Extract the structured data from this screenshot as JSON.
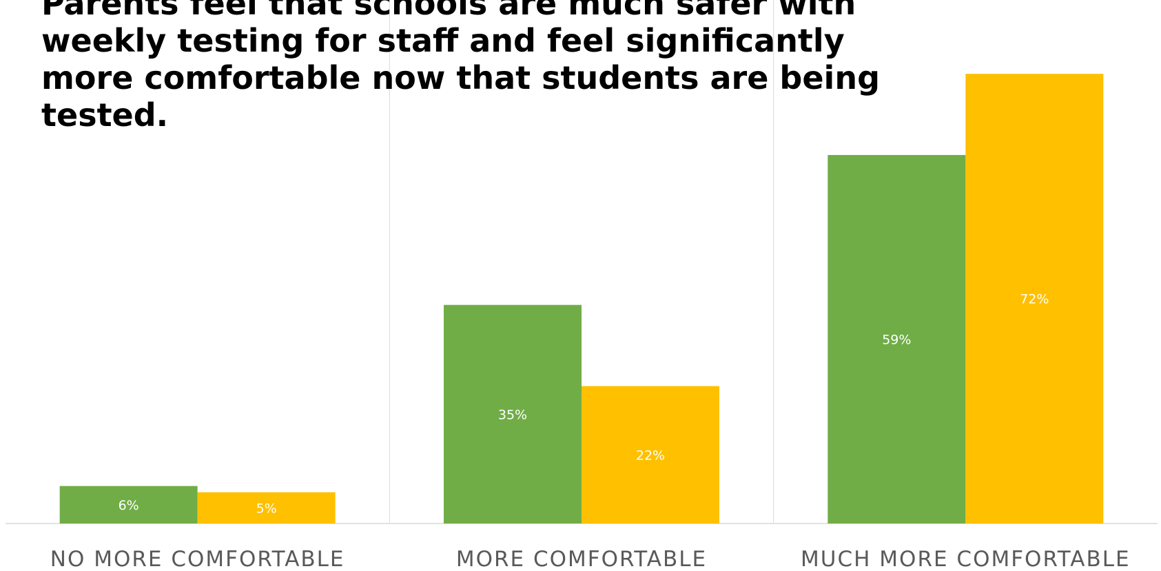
{
  "chart_data": {
    "type": "bar",
    "title": "Parents feel that schools are much safer with weekly testing for staff and feel significantly more comfortable now that students are being tested.",
    "categories": [
      "NO MORE COMFORTABLE",
      "MORE COMFORTABLE",
      "MUCH MORE COMFORTABLE"
    ],
    "series": [
      {
        "values": [
          6,
          35,
          59
        ],
        "labels": [
          "6%",
          "35%",
          "59%"
        ],
        "color": "#70AD47"
      },
      {
        "values": [
          5,
          22,
          72
        ],
        "labels": [
          "5%",
          "22%",
          "72%"
        ],
        "color": "#FFC000"
      }
    ],
    "ylim": [
      0,
      75
    ],
    "xlabel": "",
    "ylabel": "",
    "legend": "none",
    "grid": false,
    "category_separators": true,
    "data_label_color": "#FFFFFF",
    "category_label_color": "#595959",
    "axis_line_color": "#D9D9D9"
  }
}
